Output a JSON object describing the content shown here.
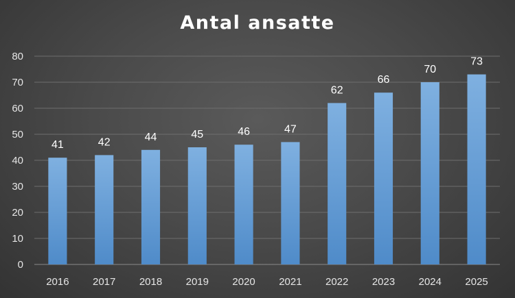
{
  "chart_data": {
    "type": "bar",
    "title": "Antal ansatte",
    "xlabel": "",
    "ylabel": "",
    "categories": [
      "2016",
      "2017",
      "2018",
      "2019",
      "2020",
      "2021",
      "2022",
      "2023",
      "2024",
      "2025"
    ],
    "values": [
      41,
      42,
      44,
      45,
      46,
      47,
      62,
      66,
      70,
      73
    ],
    "ylim": [
      0,
      80
    ],
    "yticks": [
      "0",
      "10",
      "20",
      "30",
      "40",
      "50",
      "60",
      "70",
      "80"
    ],
    "grid": true,
    "data_labels": true,
    "legend": "none",
    "colors": {
      "bar_top": "#7fb0e0",
      "bar_bottom": "#4f8bc9",
      "grid": "#6e6e6e",
      "axis": "#8a8a8a",
      "text": "#ffffff",
      "tick_text": "#e6e6e6"
    }
  }
}
